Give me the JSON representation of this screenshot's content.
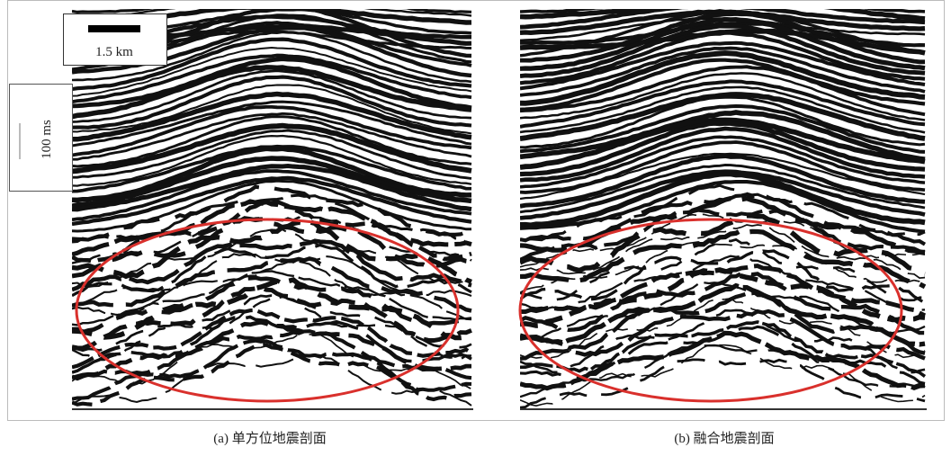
{
  "scale_bar": {
    "distance": "1.5 km",
    "time": "100 ms"
  },
  "panels": [
    {
      "caption": "(a) 单方位地震剖面"
    },
    {
      "caption": "(b) 融合地震剖面"
    }
  ]
}
